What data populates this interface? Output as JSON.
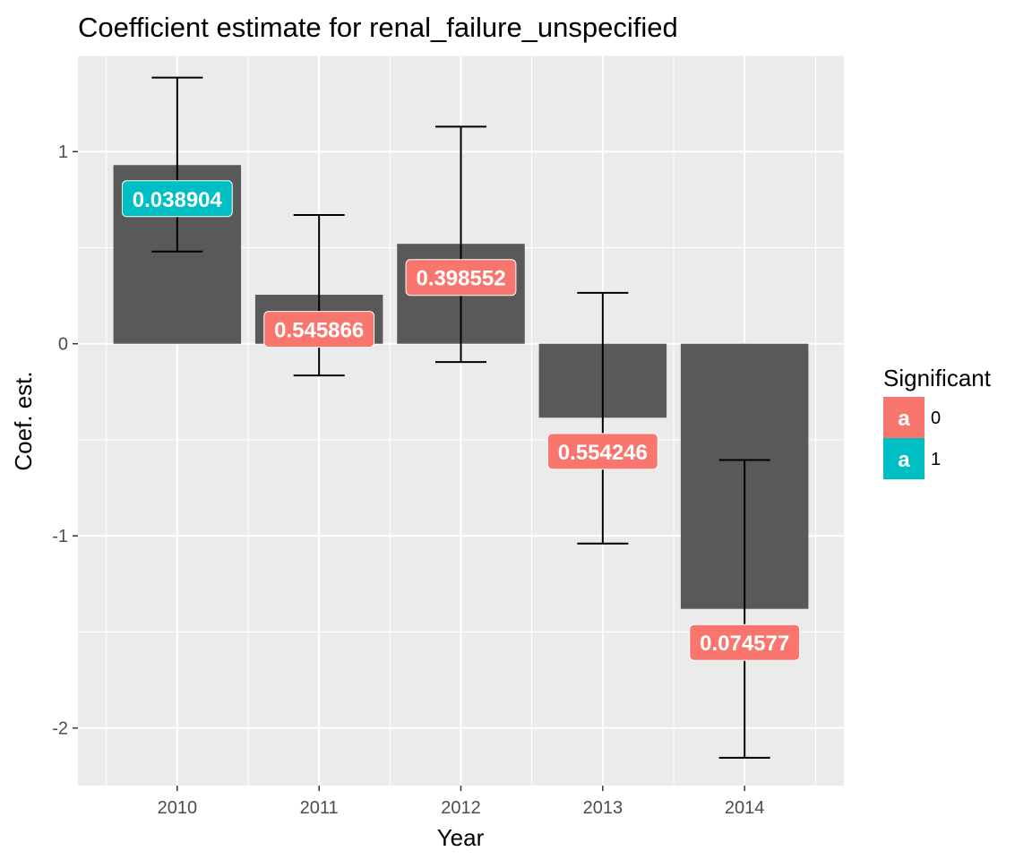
{
  "chart_data": {
    "type": "bar",
    "title": "Coefficient estimate for renal_failure_unspecified",
    "xlabel": "Year",
    "ylabel": "Coef. est.",
    "categories": [
      "2010",
      "2011",
      "2012",
      "2013",
      "2014"
    ],
    "values": [
      0.93,
      0.255,
      0.52,
      -0.385,
      -1.38
    ],
    "error_low": [
      0.48,
      -0.165,
      -0.095,
      -1.04,
      -2.155
    ],
    "error_high": [
      1.385,
      0.67,
      1.13,
      0.265,
      -0.605
    ],
    "labels": [
      "0.038904",
      "0.545866",
      "0.398552",
      "0.554246",
      "0.074577"
    ],
    "label_y": [
      0.755,
      0.075,
      0.345,
      -0.56,
      -1.555
    ],
    "significant": [
      "1",
      "0",
      "0",
      "0",
      "0"
    ],
    "ylim": [
      -2.3,
      1.5
    ],
    "yticks": [
      -2,
      -1,
      0,
      1
    ],
    "ytick_labels": [
      "-2",
      "-1",
      "0",
      "1"
    ],
    "grid": true,
    "bar_color": "#595959",
    "panel_color": "#ebebeb",
    "legend": {
      "title": "Significant",
      "placement": "right",
      "key_glyph": "a",
      "entries": [
        {
          "label": "0",
          "color": "#f8766d"
        },
        {
          "label": "1",
          "color": "#00bfc4"
        }
      ]
    }
  }
}
